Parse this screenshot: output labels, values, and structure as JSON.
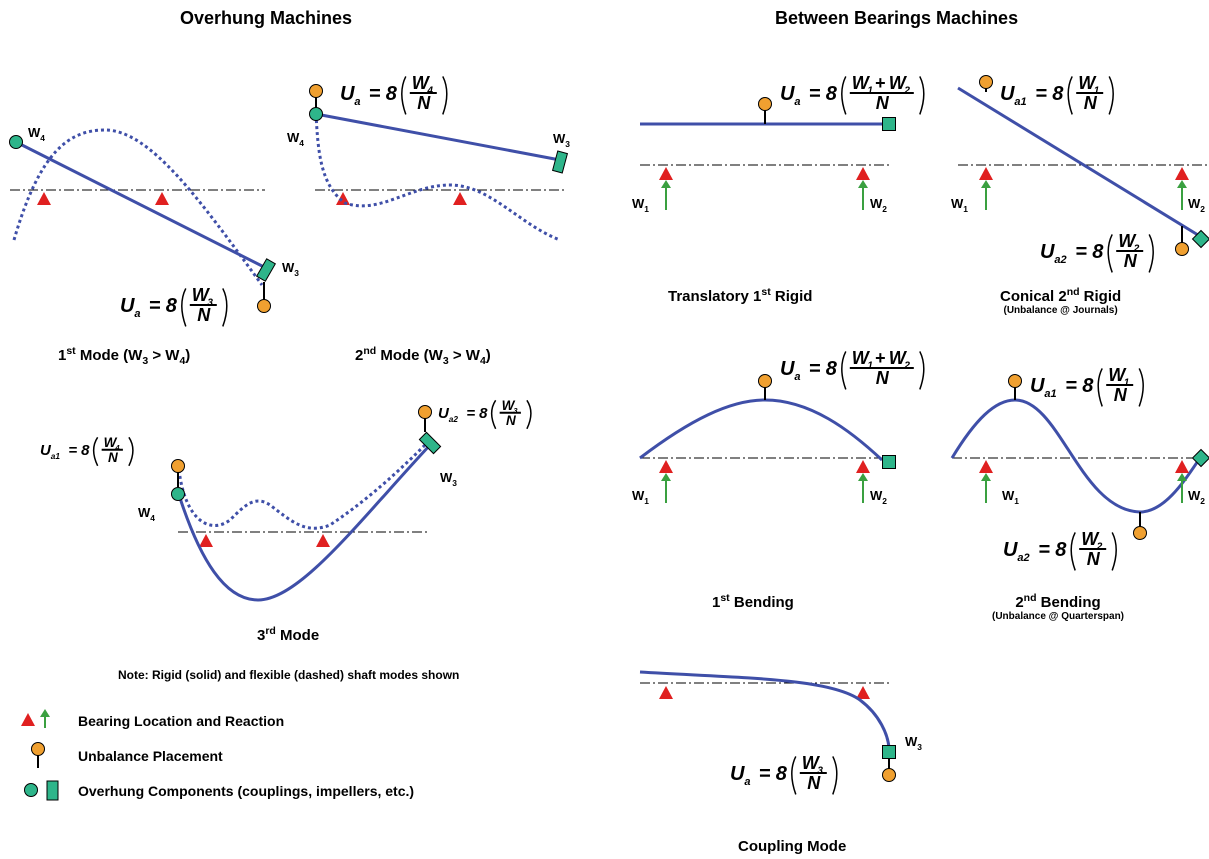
{
  "headers": {
    "overhung": "Overhung Machines",
    "between": "Between Bearings Machines"
  },
  "captions": {
    "mode1": {
      "pre": "1",
      "sup": "st",
      "mid": " Mode (W",
      "s1": "3",
      "gt": " > W",
      "s2": "4",
      "end": ")"
    },
    "mode2": {
      "pre": "2",
      "sup": "nd",
      "mid": " Mode (W",
      "s1": "3",
      "gt": " > W",
      "s2": "4",
      "end": ")"
    },
    "mode3": {
      "pre": "3",
      "sup": "rd",
      "end": " Mode"
    },
    "translatory": {
      "pre": "Translatory 1",
      "sup": "st",
      "end": " Rigid"
    },
    "conical": {
      "pre": "Conical 2",
      "sup": "nd",
      "end": " Rigid",
      "sub": "(Unbalance @ Journals)"
    },
    "bending1": {
      "pre": "1",
      "sup": "st",
      "end": " Bending"
    },
    "bending2": {
      "pre": "2",
      "sup": "nd",
      "end": " Bending",
      "sub": "(Unbalance @ Quarterspan)"
    },
    "coupling": {
      "text": "Coupling Mode"
    }
  },
  "note": "Note: Rigid (solid) and flexible (dashed) shaft modes shown",
  "legend": [
    {
      "icon": "bearing-and-reaction-icon",
      "label": "Bearing Location and Reaction"
    },
    {
      "icon": "unbalance-weight-icon",
      "label": "Unbalance Placement"
    },
    {
      "icon": "overhung-component-icon",
      "label": "Overhung Components (couplings, impellers, etc.)"
    }
  ],
  "labels": {
    "W": "W",
    "U": "U",
    "N": "N",
    "eight": "8",
    "eq": "=",
    "plus": "+",
    "sub1": "1",
    "sub2": "2",
    "sub3": "3",
    "sub4": "4",
    "suba": "a",
    "suba1": "a1",
    "suba2": "a2"
  },
  "colors": {
    "shaft": "#3f4fa8",
    "bearing": "#e02020",
    "reaction": "#3aa040",
    "unbalance": "#f0a030",
    "component": "#2eb58a",
    "centerline": "#000000"
  }
}
